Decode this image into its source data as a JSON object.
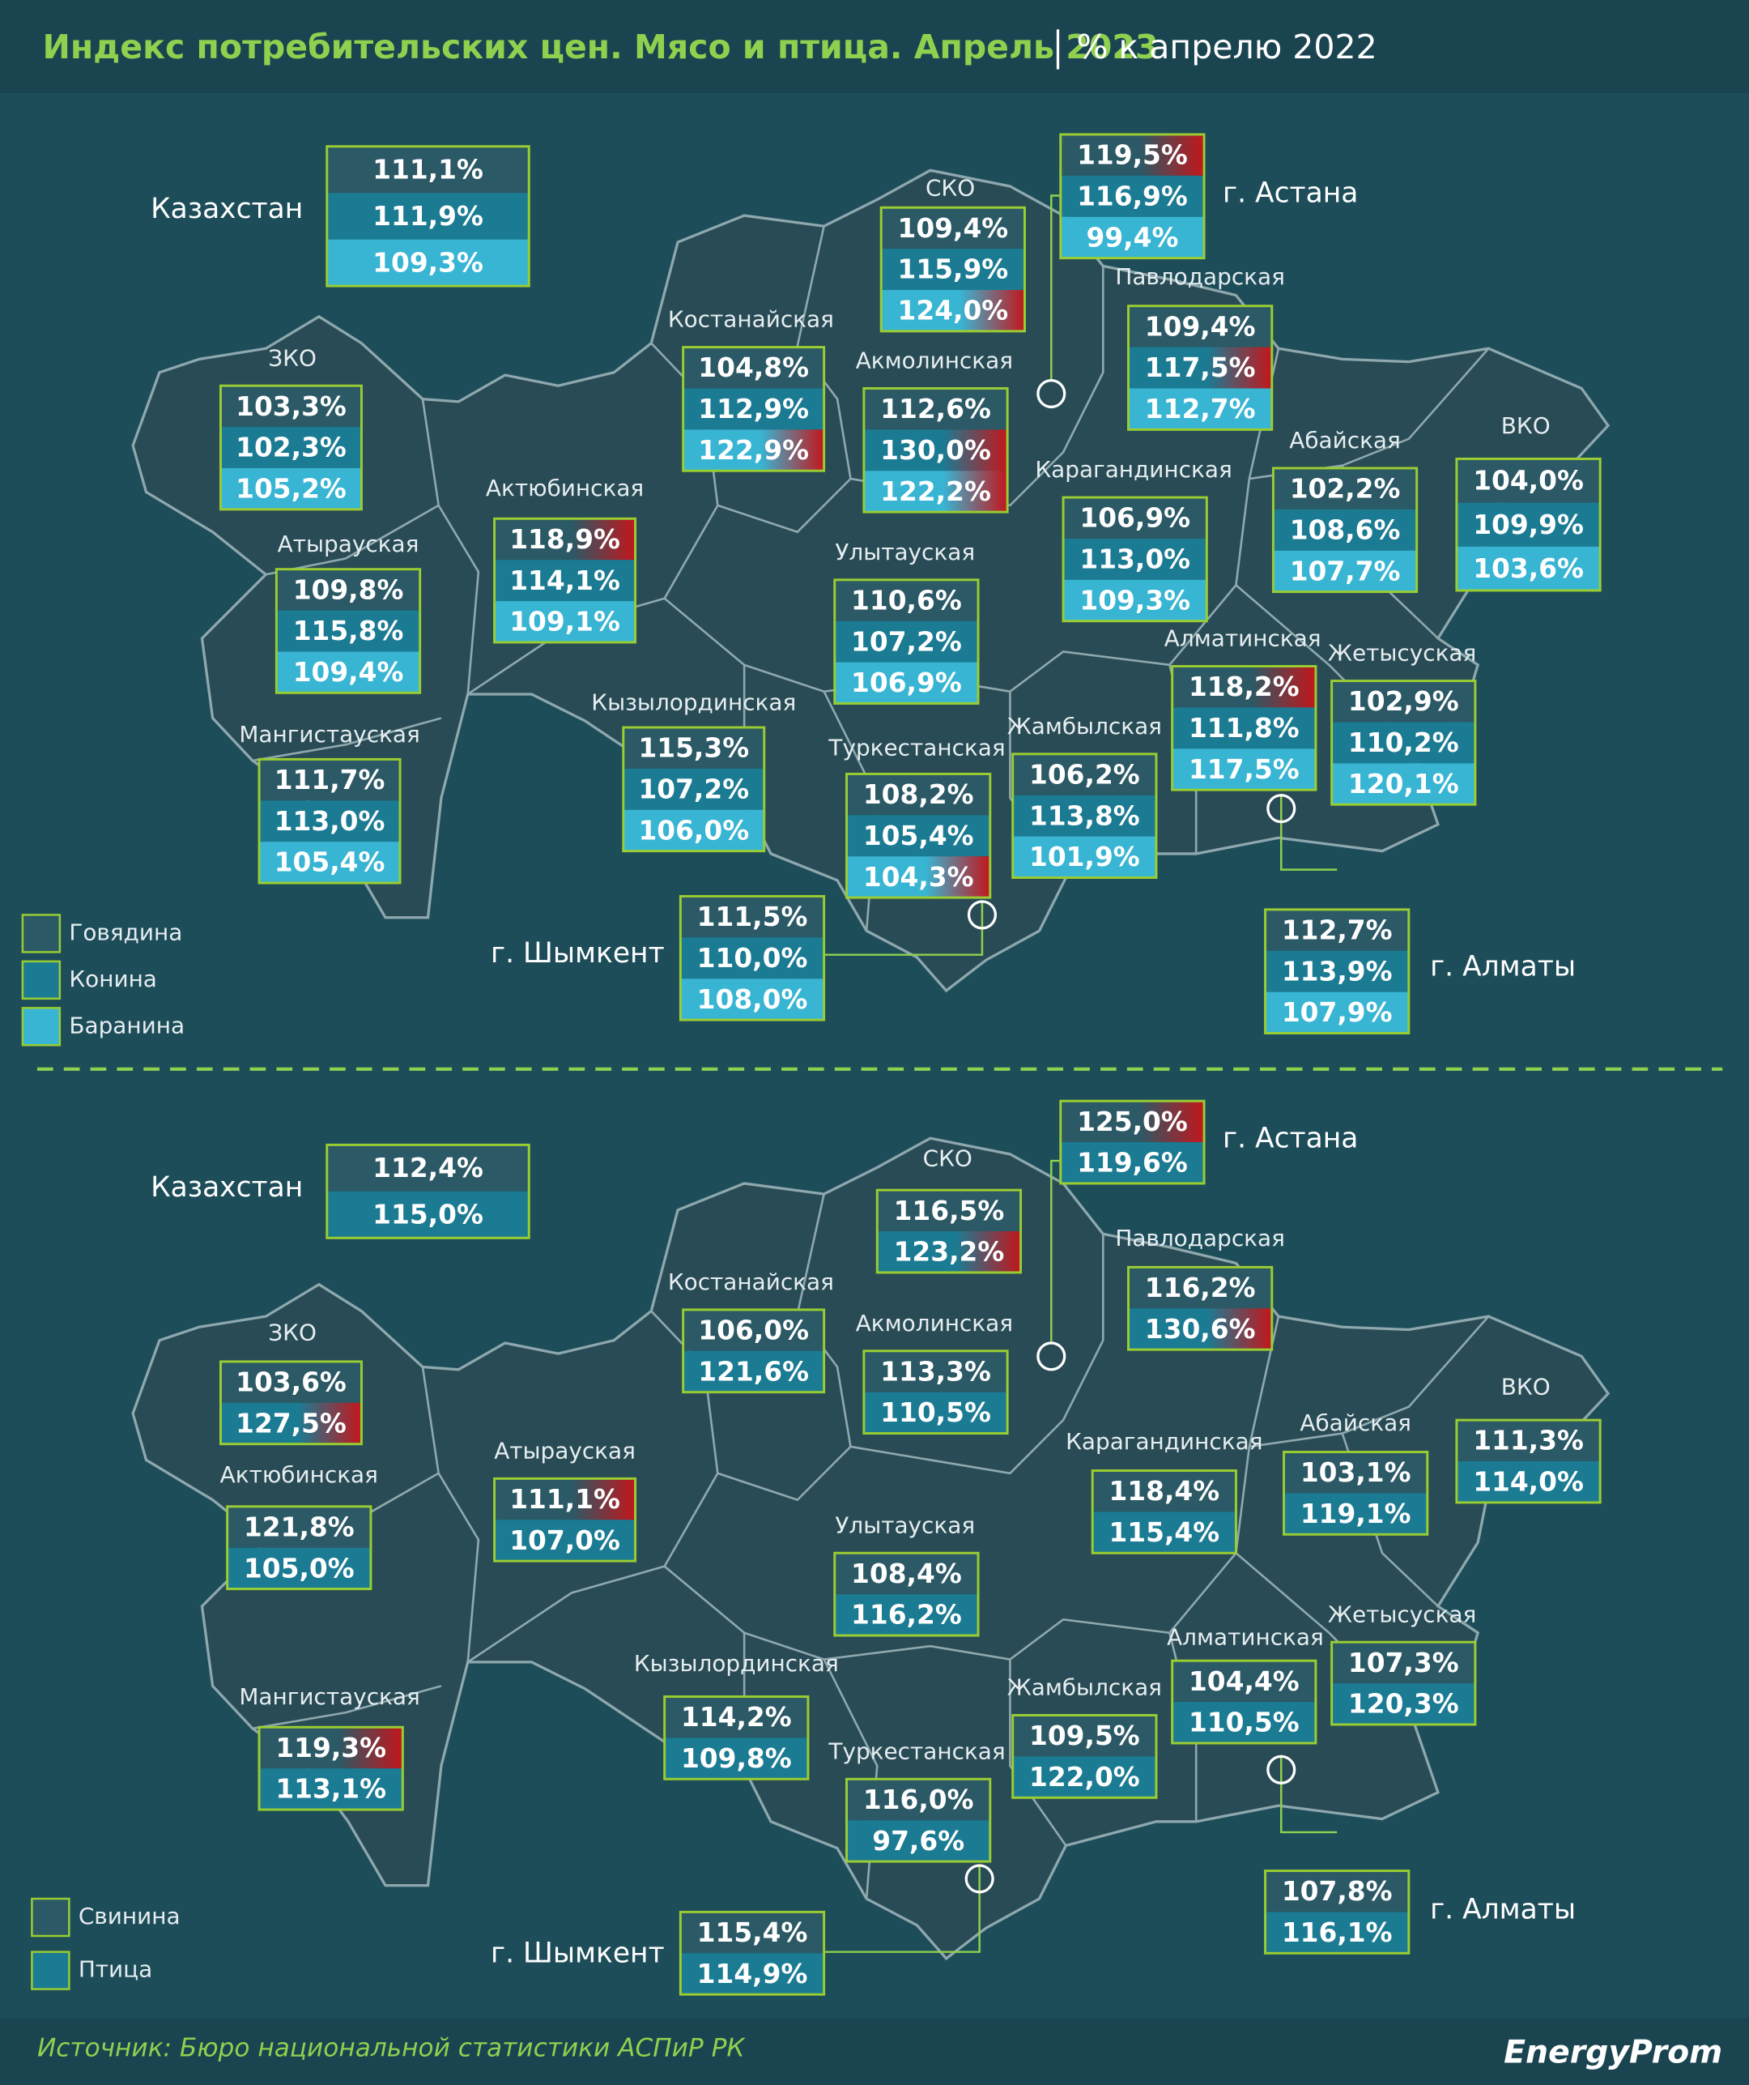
{
  "header": {
    "title": "Индекс потребительских цен. Мясо и птица. Апрель 2023",
    "subtitle": "% к апрелю 2022"
  },
  "maps": [
    {
      "legend": [
        "Говядина",
        "Конина",
        "Баранина"
      ],
      "regions": [
        {
          "name": "Казахстан",
          "values": [
            "111,1%",
            "111,9%",
            "109,3%"
          ]
        },
        {
          "name": "СКО",
          "values": [
            "109,4%",
            "115,9%",
            "124,0%"
          ]
        },
        {
          "name": "г. Астана",
          "values": [
            "119,5%",
            "116,9%",
            "99,4%"
          ]
        },
        {
          "name": "Павлодарская",
          "values": [
            "109,4%",
            "117,5%",
            "112,7%"
          ]
        },
        {
          "name": "Костанайская",
          "values": [
            "104,8%",
            "112,9%",
            "122,9%"
          ]
        },
        {
          "name": "Акмолинская",
          "values": [
            "112,6%",
            "130,0%",
            "122,2%"
          ]
        },
        {
          "name": "ЗКО",
          "values": [
            "103,3%",
            "102,3%",
            "105,2%"
          ]
        },
        {
          "name": "Актюбинская",
          "values": [
            "118,9%",
            "114,1%",
            "109,1%"
          ]
        },
        {
          "name": "Атырауская",
          "values": [
            "109,8%",
            "115,8%",
            "109,4%"
          ]
        },
        {
          "name": "Карагандинская",
          "values": [
            "106,9%",
            "113,0%",
            "109,3%"
          ]
        },
        {
          "name": "Абайская",
          "values": [
            "102,2%",
            "108,6%",
            "107,7%"
          ]
        },
        {
          "name": "ВКО",
          "values": [
            "104,0%",
            "109,9%",
            "103,6%"
          ]
        },
        {
          "name": "Улытауская",
          "values": [
            "110,6%",
            "107,2%",
            "106,9%"
          ]
        },
        {
          "name": "Алматинская",
          "values": [
            "118,2%",
            "111,8%",
            "117,5%"
          ]
        },
        {
          "name": "Жетысуская",
          "values": [
            "102,9%",
            "110,2%",
            "120,1%"
          ]
        },
        {
          "name": "Кызылординская",
          "values": [
            "115,3%",
            "107,2%",
            "106,0%"
          ]
        },
        {
          "name": "Мангистауская",
          "values": [
            "111,7%",
            "113,0%",
            "105,4%"
          ]
        },
        {
          "name": "Туркестанская",
          "values": [
            "108,2%",
            "105,4%",
            "104,3%"
          ]
        },
        {
          "name": "Жамбылская",
          "values": [
            "106,2%",
            "113,8%",
            "101,9%"
          ]
        },
        {
          "name": "г. Шымкент",
          "values": [
            "111,5%",
            "110,0%",
            "108,0%"
          ]
        },
        {
          "name": "г. Алматы",
          "values": [
            "112,7%",
            "113,9%",
            "107,9%"
          ]
        }
      ]
    },
    {
      "legend": [
        "Свинина",
        "Птица"
      ],
      "regions": [
        {
          "name": "Казахстан",
          "values": [
            "112,4%",
            "115,0%"
          ]
        },
        {
          "name": "СКО",
          "values": [
            "116,5%",
            "123,2%"
          ]
        },
        {
          "name": "г. Астана",
          "values": [
            "125,0%",
            "119,6%"
          ]
        },
        {
          "name": "Павлодарская",
          "values": [
            "116,2%",
            "130,6%"
          ]
        },
        {
          "name": "Костанайская",
          "values": [
            "106,0%",
            "121,6%"
          ]
        },
        {
          "name": "Акмолинская",
          "values": [
            "113,3%",
            "110,5%"
          ]
        },
        {
          "name": "ЗКО",
          "values": [
            "103,6%",
            "127,5%"
          ]
        },
        {
          "name": "Актюбинская",
          "values": [
            "121,8%",
            "105,0%"
          ]
        },
        {
          "name": "Атырауская",
          "values": [
            "111,1%",
            "107,0%"
          ]
        },
        {
          "name": "Карагандинская",
          "values": [
            "118,4%",
            "115,4%"
          ]
        },
        {
          "name": "Абайская",
          "values": [
            "103,1%",
            "119,1%"
          ]
        },
        {
          "name": "ВКО",
          "values": [
            "111,3%",
            "114,0%"
          ]
        },
        {
          "name": "Улытауская",
          "values": [
            "108,4%",
            "116,2%"
          ]
        },
        {
          "name": "Алматинская",
          "values": [
            "104,4%",
            "110,5%"
          ]
        },
        {
          "name": "Жетысуская",
          "values": [
            "107,3%",
            "120,3%"
          ]
        },
        {
          "name": "Кызылординская",
          "values": [
            "114,2%",
            "109,8%"
          ]
        },
        {
          "name": "Мангистауская",
          "values": [
            "119,3%",
            "113,1%"
          ]
        },
        {
          "name": "Туркестанская",
          "values": [
            "116,0%",
            "97,6%"
          ]
        },
        {
          "name": "Жамбылская",
          "values": [
            "109,5%",
            "122,0%"
          ]
        },
        {
          "name": "г. Шымкент",
          "values": [
            "115,4%",
            "114,9%"
          ]
        },
        {
          "name": "г. Алматы",
          "values": [
            "107,8%",
            "116,1%"
          ]
        }
      ]
    }
  ],
  "footer": {
    "source": "Источник: Бюро национальной статистики АСПиР РК",
    "logo": "EnergyProm"
  }
}
